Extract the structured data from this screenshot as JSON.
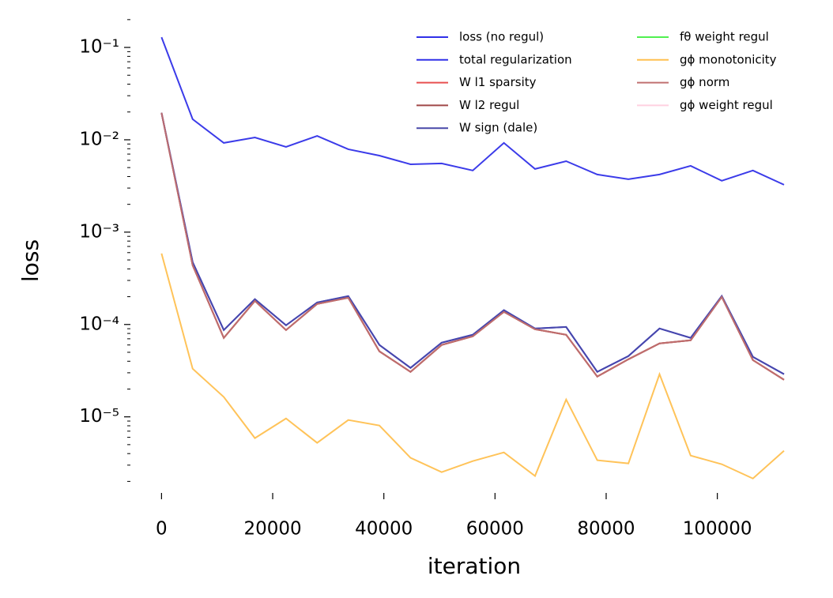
{
  "chart_data": {
    "type": "line",
    "xlabel": "iteration",
    "ylabel": "loss",
    "log_y": true,
    "legend": "upper right",
    "x": [
      0,
      5600,
      11200,
      16800,
      22400,
      28000,
      33600,
      39200,
      44800,
      50400,
      56000,
      61600,
      67200,
      72800,
      78400,
      84000,
      89600,
      95200,
      100800,
      106400,
      112000
    ],
    "series": [
      {
        "name": "loss (no regul)",
        "color": "#3030e8",
        "values": [
          0.129,
          0.0167,
          0.00925,
          0.0106,
          0.00838,
          0.011,
          0.00789,
          0.00674,
          0.00543,
          0.00554,
          0.00465,
          0.00925,
          0.00483,
          0.00587,
          0.00421,
          0.00374,
          0.00421,
          0.00522,
          0.0036,
          0.00465,
          0.00326
        ]
      },
      {
        "name": "total regularization",
        "color": "#3030e8",
        "values": [
          0.0196,
          0.000473,
          8.7e-05,
          0.000188,
          9.8e-05,
          0.000173,
          0.000203,
          6e-05,
          3.39e-05,
          6.36e-05,
          7.74e-05,
          0.000143,
          9.05e-05,
          9.4e-05,
          3.07e-05,
          4.55e-05,
          9.05e-05,
          7.16e-05,
          0.000203,
          4.46e-05,
          2.9e-05
        ]
      },
      {
        "name": "W l1 sparsity",
        "color": "#e85050",
        "values": [
          0.0196,
          0.000438,
          7.16e-05,
          0.00018,
          8.7e-05,
          0.000167,
          0.000195,
          5.12e-05,
          3.07e-05,
          6e-05,
          7.45e-05,
          0.000137,
          8.89e-05,
          7.74e-05,
          2.73e-05,
          4.2e-05,
          6.24e-05,
          6.74e-05,
          0.000199,
          4.12e-05,
          2.52e-05
        ]
      },
      {
        "name": "W l2 regul",
        "color": "#a04848",
        "values": [
          0.0196,
          0.000438,
          7.16e-05,
          0.00018,
          8.7e-05,
          0.000167,
          0.000195,
          5.12e-05,
          3.07e-05,
          6e-05,
          7.45e-05,
          0.000137,
          8.89e-05,
          7.74e-05,
          2.73e-05,
          4.2e-05,
          6.24e-05,
          6.74e-05,
          0.000199,
          4.12e-05,
          2.52e-05
        ]
      },
      {
        "name": "W sign (dale)",
        "color": "#4848a8",
        "values": [
          0.0196,
          0.000473,
          8.7e-05,
          0.000188,
          9.8e-05,
          0.000173,
          0.000203,
          6e-05,
          3.39e-05,
          6.36e-05,
          7.74e-05,
          0.000143,
          9.05e-05,
          9.4e-05,
          3.07e-05,
          4.55e-05,
          9.05e-05,
          7.16e-05,
          0.000203,
          4.46e-05,
          2.9e-05
        ]
      },
      {
        "name": "fθ weight regul",
        "color": "#50f050",
        "values": [
          null,
          null,
          null,
          null,
          null,
          null,
          null,
          null,
          null,
          null,
          null,
          null,
          null,
          null,
          null,
          null,
          null,
          null,
          null,
          null,
          null
        ]
      },
      {
        "name": "gϕ monotonicity",
        "color": "#ffc050",
        "values": [
          0.000587,
          3.32e-05,
          1.64e-05,
          5.88e-06,
          9.6e-06,
          5.23e-06,
          9.24e-06,
          8.05e-06,
          3.6e-06,
          2.52e-06,
          3.32e-06,
          4.12e-06,
          2.29e-06,
          1.54e-05,
          3.39e-06,
          3.13e-06,
          2.9e-05,
          3.81e-06,
          3.07e-06,
          2.15e-06,
          4.29e-06
        ]
      },
      {
        "name": "gϕ norm",
        "color": "#c07070",
        "values": [
          0.0196,
          0.000438,
          7.16e-05,
          0.00018,
          8.7e-05,
          0.000167,
          0.000195,
          5.12e-05,
          3.07e-05,
          6e-05,
          7.45e-05,
          0.000137,
          8.89e-05,
          7.74e-05,
          2.73e-05,
          4.2e-05,
          6.24e-05,
          6.74e-05,
          0.000199,
          4.12e-05,
          2.52e-05
        ]
      },
      {
        "name": "gϕ weight regul",
        "color": "#ffd0e0",
        "values": [
          null,
          null,
          null,
          null,
          null,
          null,
          null,
          null,
          null,
          null,
          null,
          null,
          null,
          null,
          null,
          null,
          null,
          null,
          null,
          null,
          null
        ]
      }
    ],
    "xlim": [
      -5600,
      117400
    ],
    "xticks": [
      0,
      20000,
      40000,
      60000,
      80000,
      100000
    ],
    "ylim": [
      1.5e-06,
      0.22
    ],
    "yticks": [
      {
        "value": 0.1,
        "label": "10⁻¹"
      },
      {
        "value": 0.01,
        "label": "10⁻²"
      },
      {
        "value": 0.001,
        "label": "10⁻³"
      },
      {
        "value": 0.0001,
        "label": "10⁻⁴"
      },
      {
        "value": 1e-05,
        "label": "10⁻⁵"
      }
    ]
  }
}
